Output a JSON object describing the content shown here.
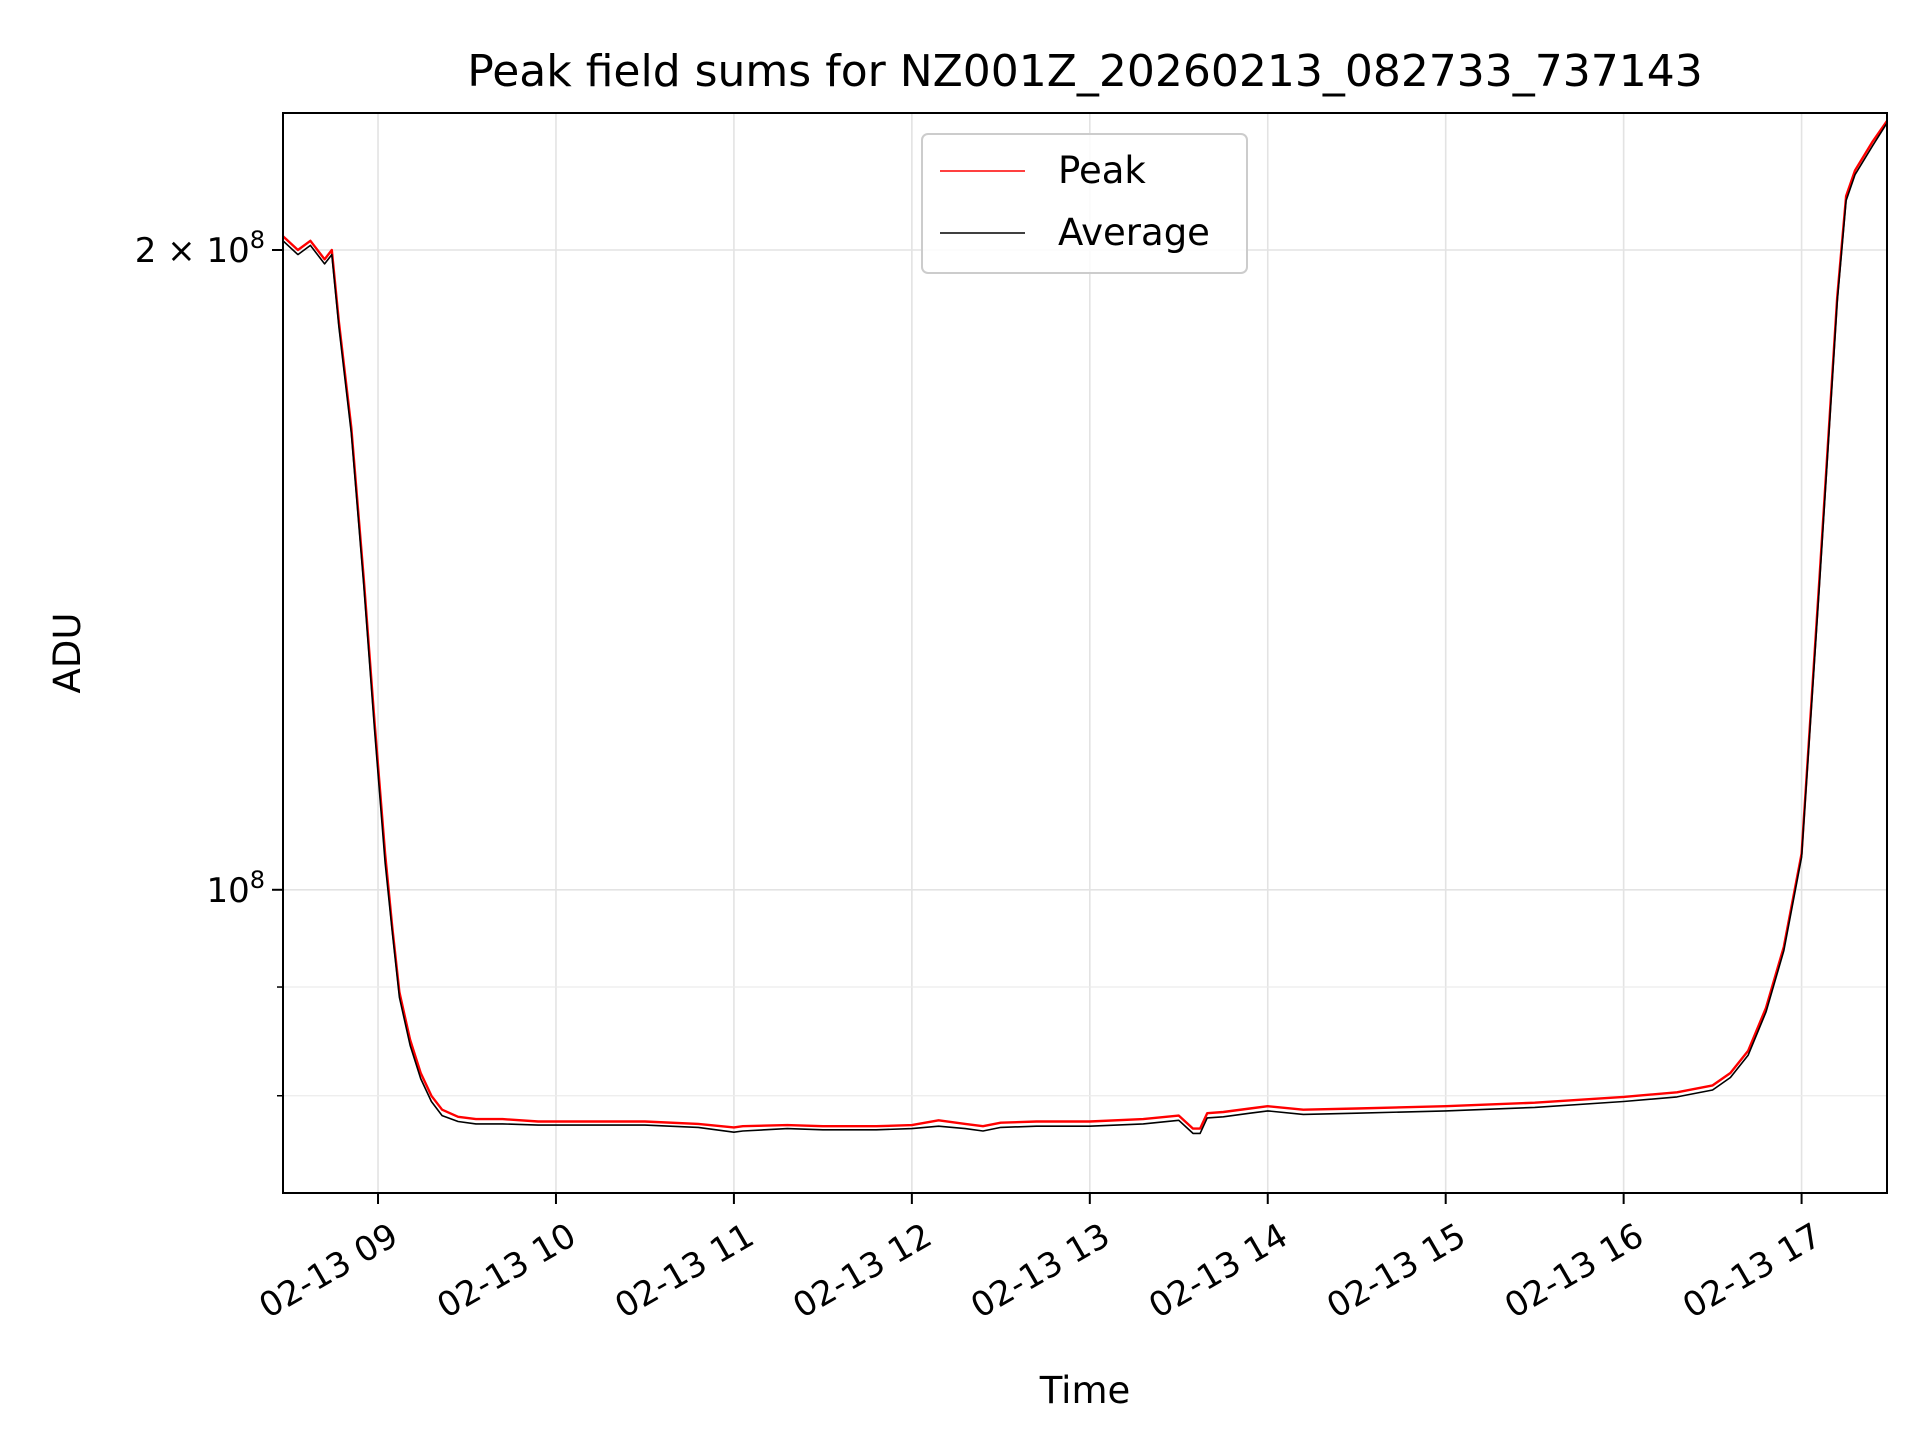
{
  "chart_data": {
    "type": "line",
    "title": "Peak field sums for NZ001Z_20260213_082733_737143",
    "xlabel": "Time",
    "ylabel": "ADU",
    "yscale": "log",
    "xlim_hours": [
      8.466,
      17.48
    ],
    "ylim": [
      72000000,
      232000000
    ],
    "grid": true,
    "legend_position": "upper center",
    "x_ticks": [
      {
        "hour": 9,
        "label": "02-13 09"
      },
      {
        "hour": 10,
        "label": "02-13 10"
      },
      {
        "hour": 11,
        "label": "02-13 11"
      },
      {
        "hour": 12,
        "label": "02-13 12"
      },
      {
        "hour": 13,
        "label": "02-13 13"
      },
      {
        "hour": 14,
        "label": "02-13 14"
      },
      {
        "hour": 15,
        "label": "02-13 15"
      },
      {
        "hour": 16,
        "label": "02-13 16"
      },
      {
        "hour": 17,
        "label": "02-13 17"
      }
    ],
    "y_major_ticks": [
      {
        "value": 100000000,
        "base": "10",
        "exp": "8",
        "prefix": ""
      },
      {
        "value": 200000000,
        "base": "10",
        "exp": "8",
        "prefix": "2 × "
      }
    ],
    "y_minor_ticks": [
      80000000,
      90000000
    ],
    "series": [
      {
        "name": "Peak",
        "color": "#ff0000",
        "x_hours": [
          8.466,
          8.55,
          8.62,
          8.7,
          8.74,
          8.78,
          8.85,
          8.92,
          8.98,
          9.04,
          9.08,
          9.12,
          9.18,
          9.24,
          9.3,
          9.36,
          9.45,
          9.55,
          9.7,
          9.9,
          10.2,
          10.5,
          10.8,
          11.0,
          11.05,
          11.3,
          11.5,
          11.8,
          12.0,
          12.15,
          12.3,
          12.4,
          12.5,
          12.7,
          13.0,
          13.3,
          13.5,
          13.58,
          13.62,
          13.66,
          13.75,
          13.9,
          14.0,
          14.2,
          14.5,
          15.0,
          15.5,
          16.0,
          16.3,
          16.5,
          16.6,
          16.7,
          16.8,
          16.9,
          17.0,
          17.1,
          17.2,
          17.25,
          17.3,
          17.4,
          17.48
        ],
        "values": [
          203000000,
          200000000,
          202000000,
          198000000,
          200000000,
          185000000,
          165000000,
          140000000,
          120000000,
          104000000,
          96000000,
          89500000,
          85000000,
          82000000,
          80000000,
          78800000,
          78200000,
          78000000,
          78000000,
          77800000,
          77800000,
          77800000,
          77600000,
          77300000,
          77400000,
          77500000,
          77400000,
          77400000,
          77500000,
          77900000,
          77600000,
          77400000,
          77700000,
          77800000,
          77800000,
          78000000,
          78300000,
          77200000,
          77200000,
          78500000,
          78600000,
          78900000,
          79100000,
          78800000,
          78900000,
          79100000,
          79400000,
          79900000,
          80300000,
          80900000,
          82000000,
          84000000,
          88000000,
          94000000,
          104000000,
          140000000,
          190000000,
          212000000,
          218000000,
          225000000,
          230000000
        ]
      },
      {
        "name": "Average",
        "color": "#000000",
        "x_hours": [
          8.466,
          8.55,
          8.62,
          8.7,
          8.74,
          8.78,
          8.85,
          8.92,
          8.98,
          9.04,
          9.08,
          9.12,
          9.18,
          9.24,
          9.3,
          9.36,
          9.45,
          9.55,
          9.7,
          9.9,
          10.2,
          10.5,
          10.8,
          11.0,
          11.05,
          11.3,
          11.5,
          11.8,
          12.0,
          12.15,
          12.3,
          12.4,
          12.5,
          12.7,
          13.0,
          13.3,
          13.5,
          13.58,
          13.62,
          13.66,
          13.75,
          13.9,
          14.0,
          14.2,
          14.5,
          15.0,
          15.5,
          16.0,
          16.3,
          16.5,
          16.6,
          16.7,
          16.8,
          16.9,
          17.0,
          17.1,
          17.2,
          17.25,
          17.3,
          17.4,
          17.48
        ],
        "values": [
          202000000,
          199000000,
          201000000,
          197000000,
          199000000,
          184000000,
          164000000,
          139000000,
          119000000,
          103000000,
          95500000,
          89000000,
          84500000,
          81500000,
          79500000,
          78300000,
          77800000,
          77600000,
          77600000,
          77500000,
          77500000,
          77500000,
          77300000,
          76900000,
          77000000,
          77200000,
          77100000,
          77100000,
          77200000,
          77400000,
          77200000,
          77000000,
          77300000,
          77400000,
          77400000,
          77600000,
          77900000,
          76800000,
          76800000,
          78100000,
          78200000,
          78500000,
          78700000,
          78400000,
          78500000,
          78700000,
          79000000,
          79500000,
          79900000,
          80500000,
          81600000,
          83600000,
          87600000,
          93600000,
          103600000,
          139000000,
          189000000,
          211000000,
          217000000,
          224000000,
          229500000
        ]
      }
    ]
  }
}
